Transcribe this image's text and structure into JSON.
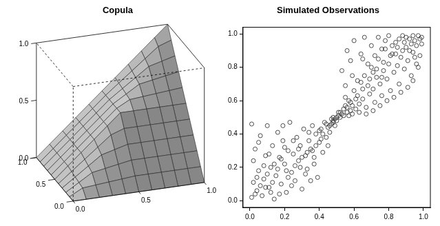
{
  "chart_data": [
    {
      "type": "surface",
      "title": "Copula",
      "x": [
        0,
        0.1,
        0.2,
        0.3,
        0.4,
        0.5,
        0.6,
        0.7,
        0.8,
        0.9,
        1
      ],
      "y": [
        0,
        0.1,
        0.2,
        0.3,
        0.4,
        0.5,
        0.6,
        0.7,
        0.8,
        0.9,
        1
      ],
      "z": [
        [
          0,
          0,
          0,
          0,
          0,
          0,
          0,
          0,
          0,
          0,
          0
        ],
        [
          0,
          0.06,
          0.07,
          0.08,
          0.09,
          0.1,
          0.1,
          0.1,
          0.1,
          0.1,
          0.1
        ],
        [
          0,
          0.07,
          0.14,
          0.16,
          0.18,
          0.2,
          0.2,
          0.2,
          0.2,
          0.2,
          0.2
        ],
        [
          0,
          0.08,
          0.16,
          0.24,
          0.27,
          0.3,
          0.3,
          0.3,
          0.3,
          0.3,
          0.3
        ],
        [
          0,
          0.09,
          0.18,
          0.27,
          0.36,
          0.4,
          0.4,
          0.4,
          0.4,
          0.4,
          0.4
        ],
        [
          0,
          0.1,
          0.2,
          0.3,
          0.4,
          0.5,
          0.5,
          0.5,
          0.5,
          0.5,
          0.5
        ],
        [
          0,
          0.1,
          0.2,
          0.3,
          0.4,
          0.5,
          0.56,
          0.57,
          0.58,
          0.59,
          0.6
        ],
        [
          0,
          0.1,
          0.2,
          0.3,
          0.4,
          0.5,
          0.57,
          0.64,
          0.66,
          0.68,
          0.7
        ],
        [
          0,
          0.1,
          0.2,
          0.3,
          0.4,
          0.5,
          0.58,
          0.66,
          0.74,
          0.77,
          0.8
        ],
        [
          0,
          0.1,
          0.2,
          0.3,
          0.4,
          0.5,
          0.59,
          0.68,
          0.77,
          0.86,
          0.9
        ],
        [
          0,
          0.1,
          0.2,
          0.3,
          0.4,
          0.5,
          0.6,
          0.7,
          0.8,
          0.9,
          1
        ]
      ],
      "xlim": [
        0,
        1
      ],
      "ylim": [
        0,
        1
      ],
      "zlim": [
        0,
        1
      ],
      "xticks": [
        {
          "value": 0,
          "label": "0.0"
        },
        {
          "value": 0.5,
          "label": "0.5"
        },
        {
          "value": 1,
          "label": "1.0"
        }
      ],
      "yticks": [
        {
          "value": 0,
          "label": "0.0"
        },
        {
          "value": 0.5,
          "label": "0.5"
        },
        {
          "value": 1,
          "label": "1.0"
        }
      ],
      "zticks": [
        {
          "value": 0,
          "label": "0.0"
        },
        {
          "value": 0.5,
          "label": "0.5"
        },
        {
          "value": 1,
          "label": "1.0"
        }
      ],
      "color": "#d6d6d6"
    },
    {
      "type": "scatter",
      "title": "Simulated Observations",
      "x": [
        0.01,
        0.02,
        0.03,
        0.01,
        0.04,
        0.05,
        0.06,
        0.02,
        0.07,
        0.08,
        0.09,
        0.1,
        0.11,
        0.12,
        0.13,
        0.14,
        0.15,
        0.16,
        0.17,
        0.18,
        0.19,
        0.2,
        0.21,
        0.22,
        0.23,
        0.24,
        0.25,
        0.26,
        0.27,
        0.28,
        0.29,
        0.3,
        0.31,
        0.32,
        0.33,
        0.34,
        0.35,
        0.36,
        0.37,
        0.38,
        0.39,
        0.4,
        0.41,
        0.42,
        0.43,
        0.44,
        0.45,
        0.46,
        0.47,
        0.48,
        0.49,
        0.47,
        0.46,
        0.48,
        0.44,
        0.42,
        0.4,
        0.38,
        0.36,
        0.34,
        0.32,
        0.3,
        0.28,
        0.26,
        0.24,
        0.22,
        0.2,
        0.18,
        0.16,
        0.14,
        0.12,
        0.1,
        0.08,
        0.06,
        0.04,
        0.03,
        0.05,
        0.09,
        0.13,
        0.17,
        0.21,
        0.25,
        0.29,
        0.33,
        0.37,
        0.41,
        0.45,
        0.35,
        0.19,
        0.11,
        0.49,
        0.5,
        0.48,
        0.5,
        0.51,
        0.52,
        0.53,
        0.51,
        0.52,
        0.54,
        0.55,
        0.56,
        0.57,
        0.58,
        0.55,
        0.59,
        0.6,
        0.61,
        0.62,
        0.63,
        0.64,
        0.65,
        0.66,
        0.67,
        0.68,
        0.69,
        0.7,
        0.71,
        0.72,
        0.73,
        0.74,
        0.75,
        0.76,
        0.77,
        0.78,
        0.79,
        0.8,
        0.81,
        0.82,
        0.83,
        0.84,
        0.85,
        0.86,
        0.87,
        0.88,
        0.89,
        0.9,
        0.91,
        0.92,
        0.93,
        0.94,
        0.95,
        0.96,
        0.97,
        0.98,
        0.99,
        0.53,
        0.56,
        0.58,
        0.6,
        0.62,
        0.64,
        0.66,
        0.68,
        0.7,
        0.72,
        0.74,
        0.76,
        0.78,
        0.8,
        0.82,
        0.84,
        0.86,
        0.88,
        0.9,
        0.92,
        0.94,
        0.96,
        0.98,
        0.95,
        0.63,
        0.67,
        0.71,
        0.75,
        0.79,
        0.83,
        0.87,
        0.91,
        0.94,
        0.97,
        0.57,
        0.59,
        0.54,
        0.56,
        0.58,
        0.61,
        0.65,
        0.69,
        0.73,
        0.77,
        0.81,
        0.85,
        0.89,
        0.93,
        0.99,
        0.55,
        0.59,
        0.65,
        0.71,
        0.76
      ],
      "values": [
        0.02,
        0.11,
        0.31,
        0.46,
        0.06,
        0.18,
        0.39,
        0.24,
        0.03,
        0.13,
        0.27,
        0.45,
        0.08,
        0.2,
        0.33,
        0.01,
        0.15,
        0.41,
        0.26,
        0.1,
        0.36,
        0.22,
        0.05,
        0.3,
        0.47,
        0.17,
        0.28,
        0.12,
        0.38,
        0.24,
        0.33,
        0.07,
        0.43,
        0.27,
        0.19,
        0.36,
        0.31,
        0.45,
        0.22,
        0.4,
        0.14,
        0.35,
        0.43,
        0.29,
        0.47,
        0.38,
        0.44,
        0.41,
        0.46,
        0.48,
        0.45,
        0.49,
        0.45,
        0.47,
        0.46,
        0.4,
        0.42,
        0.33,
        0.3,
        0.41,
        0.16,
        0.26,
        0.31,
        0.21,
        0.09,
        0.14,
        0.32,
        0.25,
        0.19,
        0.22,
        0.05,
        0.16,
        0.21,
        0.09,
        0.14,
        0.04,
        0.35,
        0.08,
        0.11,
        0.04,
        0.18,
        0.36,
        0.2,
        0.29,
        0.26,
        0.37,
        0.33,
        0.12,
        0.45,
        0.28,
        0.49,
        0.5,
        0.5,
        0.48,
        0.51,
        0.53,
        0.52,
        0.53,
        0.5,
        0.55,
        0.57,
        0.53,
        0.6,
        0.54,
        0.62,
        0.57,
        0.66,
        0.55,
        0.63,
        0.58,
        0.71,
        0.61,
        0.75,
        0.56,
        0.69,
        0.64,
        0.8,
        0.67,
        0.59,
        0.74,
        0.85,
        0.7,
        0.63,
        0.78,
        0.91,
        0.73,
        0.82,
        0.66,
        0.88,
        0.77,
        0.95,
        0.81,
        0.7,
        0.86,
        0.99,
        0.79,
        0.92,
        0.84,
        0.97,
        0.75,
        0.89,
        0.96,
        0.82,
        0.99,
        0.87,
        0.94,
        0.78,
        0.9,
        0.84,
        0.96,
        0.72,
        0.88,
        0.98,
        0.82,
        0.93,
        0.87,
        0.98,
        0.91,
        0.96,
        0.99,
        0.93,
        0.88,
        0.97,
        0.9,
        0.98,
        0.9,
        0.99,
        0.93,
        0.97,
        0.86,
        0.53,
        0.52,
        0.54,
        0.57,
        0.6,
        0.62,
        0.65,
        0.68,
        0.72,
        0.8,
        0.51,
        0.52,
        0.51,
        0.56,
        0.59,
        0.61,
        0.67,
        0.73,
        0.79,
        0.83,
        0.87,
        0.92,
        0.95,
        0.94,
        0.98,
        0.69,
        0.75,
        0.85,
        0.77,
        0.74
      ],
      "xlim": [
        -0.04,
        1.04
      ],
      "ylim": [
        -0.04,
        1.04
      ],
      "xticks": [
        {
          "value": 0,
          "label": "0.0"
        },
        {
          "value": 0.2,
          "label": "0.2"
        },
        {
          "value": 0.4,
          "label": "0.4"
        },
        {
          "value": 0.6,
          "label": "0.6"
        },
        {
          "value": 0.8,
          "label": "0.8"
        },
        {
          "value": 1,
          "label": "1.0"
        }
      ],
      "yticks": [
        {
          "value": 0,
          "label": "0.0"
        },
        {
          "value": 0.2,
          "label": "0.2"
        },
        {
          "value": 0.4,
          "label": "0.4"
        },
        {
          "value": 0.6,
          "label": "0.6"
        },
        {
          "value": 0.8,
          "label": "0.8"
        },
        {
          "value": 1,
          "label": "1.0"
        }
      ],
      "grid": false,
      "marker": "circle",
      "color": "#222222"
    }
  ]
}
